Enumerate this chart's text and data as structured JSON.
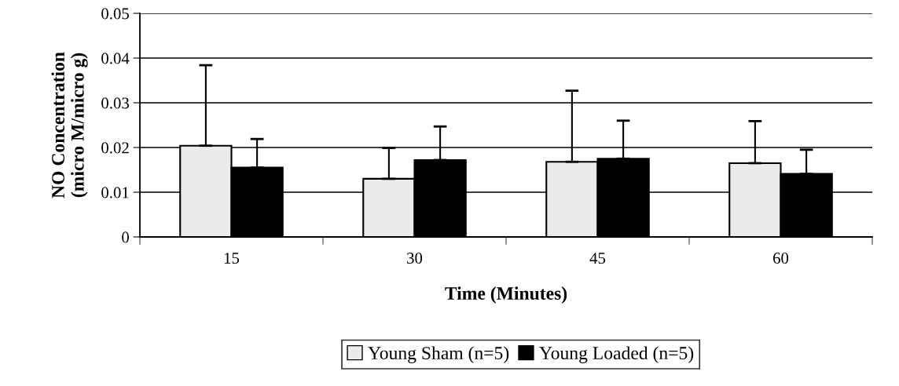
{
  "chart_data": {
    "type": "bar",
    "xlabel": "Time (Minutes)",
    "ylabel": "NO Concentration\n(micro M/micro g)",
    "categories": [
      "15",
      "30",
      "45",
      "60"
    ],
    "series": [
      {
        "name": "Young Sham (n=5)",
        "color": "#ebebeb",
        "values": [
          0.0204,
          0.013,
          0.0168,
          0.0165
        ],
        "errors": [
          [
            0.0204,
            0.0384
          ],
          [
            0.013,
            0.0199
          ],
          [
            0.0168,
            0.0327
          ],
          [
            0.0165,
            0.0259
          ]
        ]
      },
      {
        "name": "Young Loaded (n=5)",
        "color": "#000000",
        "values": [
          0.0155,
          0.0172,
          0.0175,
          0.0141
        ],
        "errors": [
          [
            0.0155,
            0.0219
          ],
          [
            0.0172,
            0.0247
          ],
          [
            0.0175,
            0.026
          ],
          [
            0.0141,
            0.0195
          ]
        ]
      }
    ],
    "ylim": [
      0,
      0.05
    ],
    "yticks": [
      {
        "value": 0,
        "label": "0"
      },
      0.01,
      0.02,
      0.03,
      0.04,
      0.05
    ],
    "grid": "y",
    "legend": "bottom"
  }
}
